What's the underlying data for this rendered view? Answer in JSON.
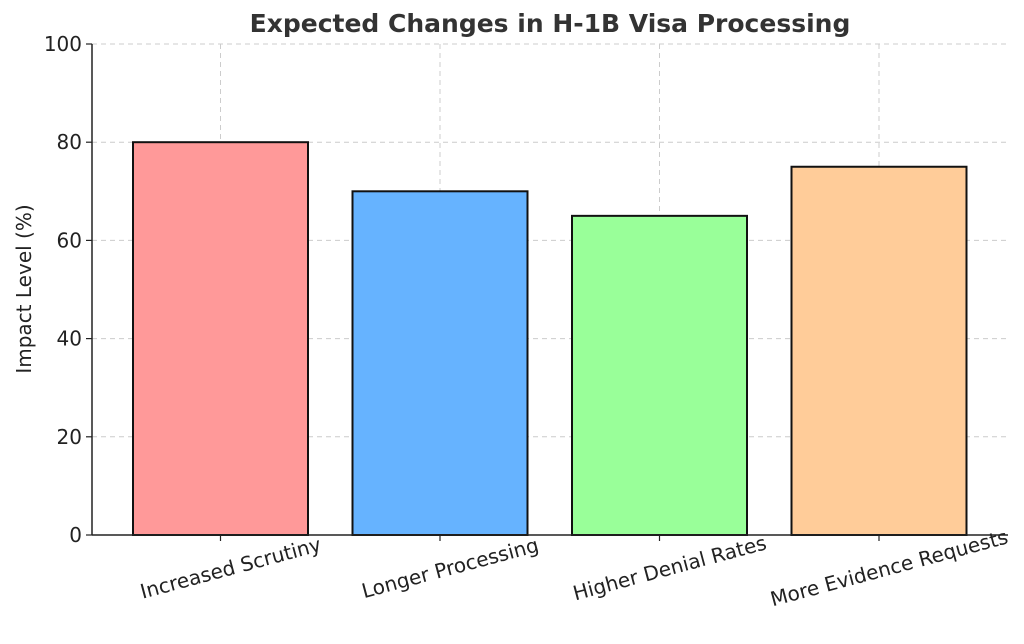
{
  "chart_data": {
    "type": "bar",
    "title": "Expected Changes in H-1B Visa Processing",
    "xlabel": "",
    "ylabel": "Impact Level (%)",
    "categories": [
      "Increased Scrutiny",
      "Longer Processing",
      "Higher Denial Rates",
      "More Evidence Requests"
    ],
    "values": [
      80,
      70,
      65,
      75
    ],
    "colors": [
      "#ff9999",
      "#66b3ff",
      "#99ff99",
      "#ffcc99"
    ],
    "ylim": [
      0,
      100
    ],
    "yticks": [
      "0",
      "20",
      "40",
      "60",
      "80",
      "100"
    ],
    "grid": true
  }
}
